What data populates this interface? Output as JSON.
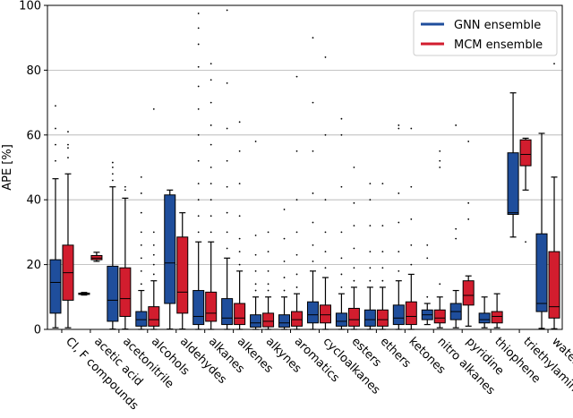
{
  "chart_data": {
    "type": "boxplot",
    "title": "",
    "xlabel": "",
    "ylabel": "APE [%]",
    "ylim": [
      0,
      100
    ],
    "yticks": [
      0,
      20,
      40,
      60,
      80,
      100
    ],
    "grid": "horizontal",
    "legend_position": "top-right",
    "categories": [
      "Cl, F compounds",
      "acetic acid",
      "acetonitrile",
      "alcohols",
      "aldehydes",
      "alkanes",
      "alkenes",
      "alkynes",
      "aromatics",
      "cycloalkanes",
      "esters",
      "ethers",
      "ketones",
      "nitro alkanes",
      "pyridine",
      "thiophene",
      "triethylamine",
      "water"
    ],
    "series": [
      {
        "name": "GNN ensemble",
        "color": "#1f4e9c",
        "boxes": [
          {
            "q1": 5,
            "median": 14.5,
            "q3": 21.5,
            "whisker_low": 0.5,
            "whisker_high": 46.5,
            "outliers": [
              52,
              57,
              62,
              69
            ]
          },
          {
            "q1": 10.8,
            "median": 11,
            "q3": 11.2,
            "whisker_low": 10.6,
            "whisker_high": 11.4,
            "outliers": []
          },
          {
            "q1": 2.5,
            "median": 9,
            "q3": 19.5,
            "whisker_low": 0.1,
            "whisker_high": 44,
            "outliers": [
              46,
              48,
              50,
              51.5
            ]
          },
          {
            "q1": 1,
            "median": 3,
            "q3": 5.5,
            "whisker_low": 0,
            "whisker_high": 12,
            "outliers": [
              14,
              18,
              22,
              26,
              30,
              36,
              42,
              47
            ]
          },
          {
            "q1": 8,
            "median": 20.5,
            "q3": 41.5,
            "whisker_low": 0.1,
            "whisker_high": 43,
            "outliers": []
          },
          {
            "q1": 1.5,
            "median": 4,
            "q3": 12,
            "whisker_low": 0,
            "whisker_high": 27,
            "outliers": [
              30,
              35,
              40,
              45,
              52,
              60,
              68,
              75,
              81,
              88,
              93,
              97.5
            ]
          },
          {
            "q1": 1.5,
            "median": 3.5,
            "q3": 9.5,
            "whisker_low": 0,
            "whisker_high": 22,
            "outliers": [
              25,
              30,
              36,
              44,
              52,
              62,
              76,
              98.5
            ]
          },
          {
            "q1": 0.7,
            "median": 2,
            "q3": 4.5,
            "whisker_low": 0,
            "whisker_high": 10,
            "outliers": [
              12,
              14,
              18,
              23,
              29,
              58
            ]
          },
          {
            "q1": 0.7,
            "median": 2,
            "q3": 4.5,
            "whisker_low": 0,
            "whisker_high": 10,
            "outliers": [
              12,
              16,
              21,
              28,
              37
            ]
          },
          {
            "q1": 2,
            "median": 4.5,
            "q3": 8.5,
            "whisker_low": 0,
            "whisker_high": 18,
            "outliers": [
              21,
              26,
              33,
              42,
              55,
              70,
              90
            ]
          },
          {
            "q1": 1,
            "median": 2.5,
            "q3": 5,
            "whisker_low": 0,
            "whisker_high": 11,
            "outliers": [
              13,
              17,
              22,
              30,
              44,
              60,
              65
            ]
          },
          {
            "q1": 1,
            "median": 3,
            "q3": 6,
            "whisker_low": 0,
            "whisker_high": 13,
            "outliers": [
              15,
              19,
              24,
              32,
              40,
              45
            ]
          },
          {
            "q1": 1.5,
            "median": 3.5,
            "q3": 7.5,
            "whisker_low": 0,
            "whisker_high": 15,
            "outliers": [
              18,
              24,
              33,
              42,
              62,
              63
            ]
          },
          {
            "q1": 3,
            "median": 4.5,
            "q3": 6,
            "whisker_low": 1.5,
            "whisker_high": 8,
            "outliers": [
              10,
              22,
              26
            ]
          },
          {
            "q1": 3,
            "median": 5.5,
            "q3": 8,
            "whisker_low": 0.5,
            "whisker_high": 12,
            "outliers": [
              28,
              31,
              63
            ]
          },
          {
            "q1": 2,
            "median": 3,
            "q3": 5,
            "whisker_low": 0.5,
            "whisker_high": 10,
            "outliers": []
          },
          {
            "q1": 35.5,
            "median": 36,
            "q3": 54.5,
            "whisker_low": 28.5,
            "whisker_high": 73,
            "outliers": []
          },
          {
            "q1": 5.5,
            "median": 8,
            "q3": 29.5,
            "whisker_low": 0.3,
            "whisker_high": 60.5,
            "outliers": []
          }
        ]
      },
      {
        "name": "MCM ensemble",
        "color": "#d21d2e",
        "boxes": [
          {
            "q1": 9,
            "median": 17.5,
            "q3": 26,
            "whisker_low": 0.5,
            "whisker_high": 48,
            "outliers": [
              53,
              56,
              57,
              61
            ]
          },
          {
            "q1": 21.5,
            "median": 22,
            "q3": 22.8,
            "whisker_low": 21,
            "whisker_high": 23.8,
            "outliers": []
          },
          {
            "q1": 4,
            "median": 9.5,
            "q3": 19,
            "whisker_low": 0.1,
            "whisker_high": 40.5,
            "outliers": [
              43,
              44
            ]
          },
          {
            "q1": 1,
            "median": 3,
            "q3": 7,
            "whisker_low": 0,
            "whisker_high": 15,
            "outliers": [
              17,
              20,
              23,
              26,
              30,
              68
            ]
          },
          {
            "q1": 5,
            "median": 11.5,
            "q3": 28.5,
            "whisker_low": 0.1,
            "whisker_high": 36,
            "outliers": []
          },
          {
            "q1": 2.5,
            "median": 5,
            "q3": 11.5,
            "whisker_low": 0,
            "whisker_high": 27,
            "outliers": [
              30,
              35,
              40,
              45,
              50,
              57,
              63,
              70,
              77,
              82
            ]
          },
          {
            "q1": 1.5,
            "median": 3.5,
            "q3": 8,
            "whisker_low": 0,
            "whisker_high": 18,
            "outliers": [
              20,
              24,
              28,
              35,
              45,
              55,
              64
            ]
          },
          {
            "q1": 0.8,
            "median": 2.5,
            "q3": 5,
            "whisker_low": 0,
            "whisker_high": 10,
            "outliers": [
              12,
              14,
              18,
              24,
              30
            ]
          },
          {
            "q1": 1,
            "median": 3,
            "q3": 5.5,
            "whisker_low": 0,
            "whisker_high": 11,
            "outliers": [
              13,
              17,
              23,
              30,
              40,
              55,
              78
            ]
          },
          {
            "q1": 2,
            "median": 4.5,
            "q3": 7.5,
            "whisker_low": 0,
            "whisker_high": 16,
            "outliers": [
              19,
              24,
              30,
              40,
              60,
              84
            ]
          },
          {
            "q1": 1,
            "median": 3,
            "q3": 6.5,
            "whisker_low": 0,
            "whisker_high": 13,
            "outliers": [
              15,
              19,
              25,
              32,
              39,
              50
            ]
          },
          {
            "q1": 1,
            "median": 3,
            "q3": 6,
            "whisker_low": 0,
            "whisker_high": 13,
            "outliers": [
              15,
              19,
              24,
              32,
              45
            ]
          },
          {
            "q1": 1.5,
            "median": 4,
            "q3": 8.5,
            "whisker_low": 0,
            "whisker_high": 17,
            "outliers": [
              20,
              26,
              34,
              44,
              62
            ]
          },
          {
            "q1": 2,
            "median": 3.5,
            "q3": 6,
            "whisker_low": 0.5,
            "whisker_high": 10,
            "outliers": [
              14,
              50,
              52,
              55
            ]
          },
          {
            "q1": 7.5,
            "median": 10.5,
            "q3": 15,
            "whisker_low": 1,
            "whisker_high": 16.5,
            "outliers": [
              34,
              39,
              58
            ]
          },
          {
            "q1": 2,
            "median": 4,
            "q3": 5.5,
            "whisker_low": 0.5,
            "whisker_high": 11,
            "outliers": []
          },
          {
            "q1": 50.5,
            "median": 54,
            "q3": 58.5,
            "whisker_low": 43,
            "whisker_high": 59,
            "outliers": [
              27
            ]
          },
          {
            "q1": 3.5,
            "median": 7,
            "q3": 24,
            "whisker_low": 0.2,
            "whisker_high": 47,
            "outliers": [
              82
            ]
          }
        ]
      }
    ]
  }
}
